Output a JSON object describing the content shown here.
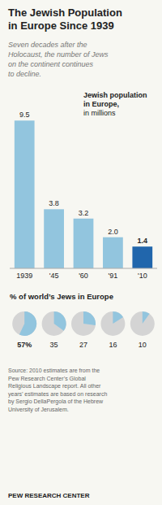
{
  "chart_data": [
    {
      "type": "bar",
      "title": "The Jewish Population\nin Europe Since 1939",
      "subtitle": "Seven decades after the\nHolocaust, the number of Jews\non the continent continues\nto decline.",
      "annotations": [
        "Jewish population\nin Europe,",
        "in millions"
      ],
      "categories": [
        "1939",
        "'45",
        "'60",
        "'91",
        "'10"
      ],
      "values": [
        9.5,
        3.8,
        3.2,
        2.0,
        1.4
      ],
      "value_labels": [
        "9.5",
        "3.8",
        "3.2",
        "2.0",
        "1.4"
      ],
      "colors": [
        "#92c5de",
        "#92c5de",
        "#92c5de",
        "#92c5de",
        "#2166ac"
      ],
      "ylim": [
        0,
        11.5
      ],
      "data_labels": true,
      "tick_labels": "x",
      "grid": false
    },
    {
      "type": "pie",
      "title": "% of world’s Jews in Europe",
      "categories": [
        "1939",
        "'45",
        "'60",
        "'91",
        "'10"
      ],
      "values": [
        57,
        35,
        27,
        16,
        10
      ],
      "value_labels": [
        "57%",
        "35",
        "27",
        "16",
        "10"
      ],
      "color": "#92c5de",
      "data_labels": true,
      "source": "Source: 2010 estimates are from the\nPew Research Center’s Global\nReligious Landscape report. All other\nyears’ estimates are based on research\nby Sergio DellaPergola of the Hebrew\nUniversity of Jerusalem.",
      "footer": "PEW RESEARCH CENTER"
    }
  ]
}
